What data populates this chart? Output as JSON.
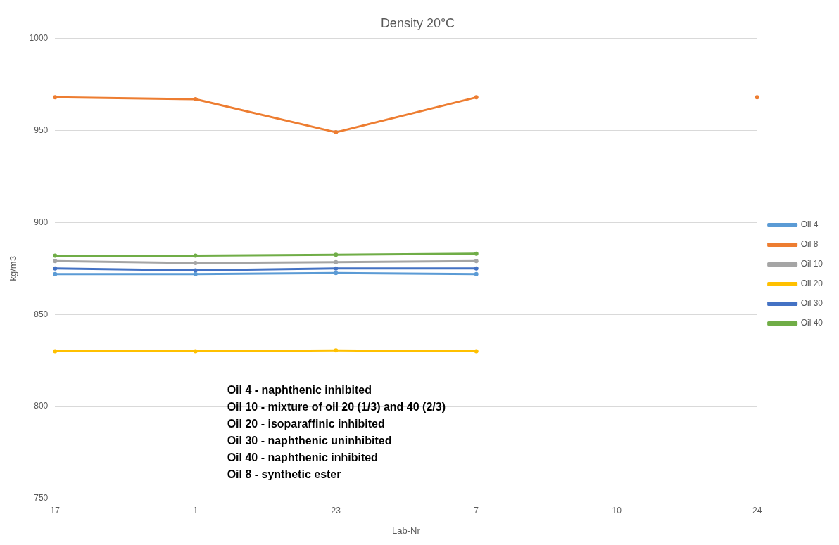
{
  "chart_data": {
    "type": "line",
    "title": "Density 20°C",
    "xlabel": "Lab-Nr",
    "ylabel": "kg/m3",
    "categories": [
      "17",
      "1",
      "23",
      "7",
      "10",
      "24"
    ],
    "series": [
      {
        "name": "Oil 4",
        "color": "#5b9bd5",
        "values": [
          872,
          872,
          872.5,
          872,
          null,
          null
        ]
      },
      {
        "name": "Oil 8",
        "color": "#ed7d31",
        "values": [
          968,
          967,
          949,
          968,
          null,
          968
        ]
      },
      {
        "name": "Oil 10",
        "color": "#a5a5a5",
        "values": [
          879,
          878,
          878.5,
          879,
          null,
          null
        ]
      },
      {
        "name": "Oil 20",
        "color": "#ffc000",
        "values": [
          830,
          830,
          830.5,
          830,
          null,
          null
        ]
      },
      {
        "name": "Oil 30",
        "color": "#4472c4",
        "values": [
          875,
          874,
          875,
          875,
          null,
          null
        ]
      },
      {
        "name": "Oil 40",
        "color": "#70ad47",
        "values": [
          882,
          882,
          882.5,
          883,
          null,
          null
        ]
      }
    ],
    "ylim": [
      750,
      1000
    ],
    "yticks": [
      750,
      800,
      850,
      900,
      950,
      1000
    ],
    "grid": "y",
    "legend": "right",
    "marker": "circle",
    "line_style": "solid",
    "annotations": [
      "Oil 4 - naphthenic inhibited",
      "Oil 10 - mixture of oil 20 (1/3) and 40 (2/3)",
      "Oil 20 - isoparaffinic inhibited",
      "Oil 30 - naphthenic uninhibited",
      "Oil 40 - naphthenic inhibited",
      "Oil 8 - synthetic ester"
    ]
  }
}
